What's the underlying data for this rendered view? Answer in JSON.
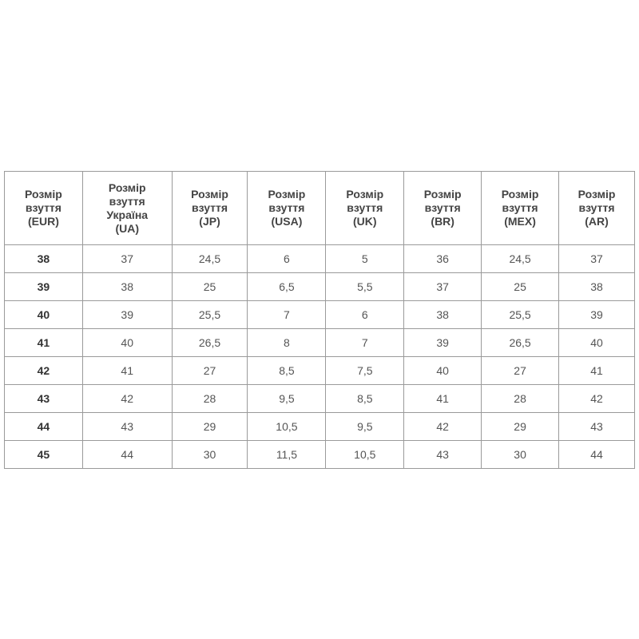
{
  "table": {
    "headers": [
      [
        "Розмір",
        "взуття",
        "(EUR)"
      ],
      [
        "Розмір",
        "взуття",
        "Україна",
        "(UA)"
      ],
      [
        "Розмір",
        "взуття",
        "(JP)"
      ],
      [
        "Розмір",
        "взуття",
        "(USA)"
      ],
      [
        "Розмір",
        "взуття",
        "(UK)"
      ],
      [
        "Розмір",
        "взуття",
        "(BR)"
      ],
      [
        "Розмір",
        "взуття",
        "(MEX)"
      ],
      [
        "Розмір",
        "взуття",
        "(AR)"
      ]
    ],
    "rows": [
      [
        "38",
        "37",
        "24,5",
        "6",
        "5",
        "36",
        "24,5",
        "37"
      ],
      [
        "39",
        "38",
        "25",
        "6,5",
        "5,5",
        "37",
        "25",
        "38"
      ],
      [
        "40",
        "39",
        "25,5",
        "7",
        "6",
        "38",
        "25,5",
        "39"
      ],
      [
        "41",
        "40",
        "26,5",
        "8",
        "7",
        "39",
        "26,5",
        "40"
      ],
      [
        "42",
        "41",
        "27",
        "8,5",
        "7,5",
        "40",
        "27",
        "41"
      ],
      [
        "43",
        "42",
        "28",
        "9,5",
        "8,5",
        "41",
        "28",
        "42"
      ],
      [
        "44",
        "43",
        "29",
        "10,5",
        "9,5",
        "42",
        "29",
        "43"
      ],
      [
        "45",
        "44",
        "30",
        "11,5",
        "10,5",
        "43",
        "30",
        "44"
      ]
    ]
  }
}
